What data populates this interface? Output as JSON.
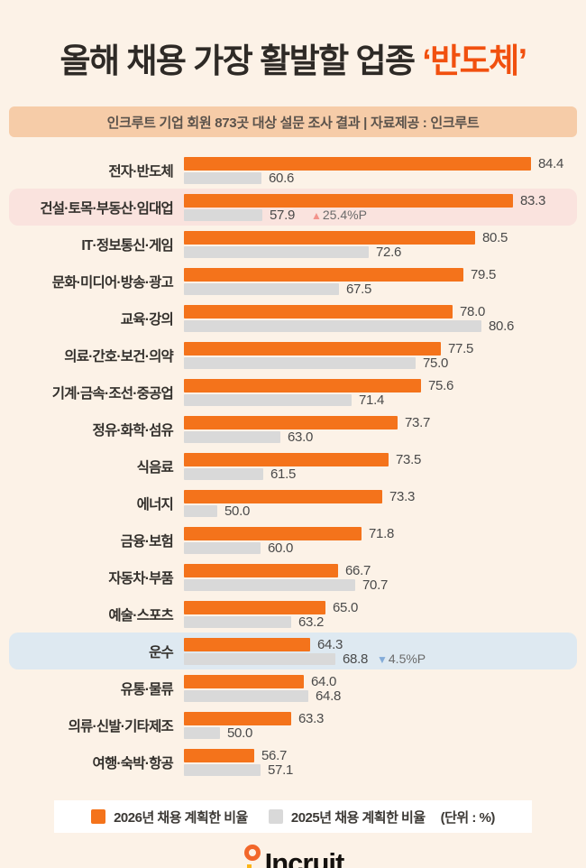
{
  "title": {
    "prefix": "올해 채용 가장 활발할 업종 ",
    "highlight": "‘반도체’"
  },
  "subtitle": "인크루트 기업 회원 873곳 대상 설문 조사 결과 | 자료제공 : 인크루트",
  "legend": {
    "label_2026": "2026년 채용 계획한 비율",
    "label_2025": "2025년 채용 계획한 비율",
    "unit": "(단위 : %)"
  },
  "logo": {
    "text": "Incruit"
  },
  "colors": {
    "background": "#FCF2E7",
    "bar_2026": "#F4731B",
    "bar_2025": "#D9D9D9",
    "title_accent": "#F1500F",
    "subtitle_bg": "#F6CCA8",
    "highlight_pink": "#FAE3DE",
    "highlight_blue": "#DEE9F1",
    "up_marker": "#F2938B",
    "down_marker": "#83ABD8"
  },
  "chart_data": {
    "type": "bar",
    "orientation": "horizontal",
    "title": "올해 채용 가장 활발할 업종 ‘반도체’",
    "unit": "%",
    "legend_position": "bottom",
    "categories": [
      "전자·반도체",
      "건설·토목·부동산·임대업",
      "IT·정보통신·게임",
      "문화·미디어·방송·광고",
      "교육·강의",
      "의료·간호·보건·의약",
      "기계·금속·조선·중공업",
      "정유·화학·섬유",
      "식음료",
      "에너지",
      "금융·보험",
      "자동차·부품",
      "예술·스포츠",
      "운수",
      "유통·물류",
      "의류·신발·기타제조",
      "여행·숙박·항공"
    ],
    "series": [
      {
        "name": "2026년 채용 계획한 비율",
        "values": [
          84.4,
          83.3,
          80.5,
          79.5,
          78.0,
          77.5,
          75.6,
          73.7,
          73.5,
          73.3,
          71.8,
          66.7,
          65.0,
          64.3,
          64.0,
          63.3,
          56.7
        ]
      },
      {
        "name": "2025년 채용 계획한 비율",
        "values": [
          60.6,
          57.9,
          72.6,
          67.5,
          80.6,
          75.0,
          71.4,
          63.0,
          61.5,
          50.0,
          60.0,
          70.7,
          63.2,
          68.8,
          64.8,
          50.0,
          57.1
        ]
      }
    ],
    "annotations": [
      {
        "category": "건설·토목·부동산·임대업",
        "marker": "▲",
        "text": "25.4%P",
        "direction": "up"
      },
      {
        "category": "운수",
        "marker": "▼",
        "text": "4.5%P",
        "direction": "down"
      }
    ],
    "rows": [
      {
        "label": "전자·반도체",
        "v2026": "84.4",
        "v2025": "60.6",
        "w2026": 385,
        "w2025": 86,
        "highlight": null,
        "annotation": null
      },
      {
        "label": "건설·토목·부동산·임대업",
        "v2026": "83.3",
        "v2025": "57.9",
        "w2026": 365,
        "w2025": 87,
        "highlight": "pink",
        "annotation": {
          "marker": "▲",
          "text": "25.4%P",
          "direction": "up"
        }
      },
      {
        "label": "IT·정보통신·게임",
        "v2026": "80.5",
        "v2025": "72.6",
        "w2026": 323,
        "w2025": 205,
        "highlight": null,
        "annotation": null
      },
      {
        "label": "문화·미디어·방송·광고",
        "v2026": "79.5",
        "v2025": "67.5",
        "w2026": 310,
        "w2025": 172,
        "highlight": null,
        "annotation": null
      },
      {
        "label": "교육·강의",
        "v2026": "78.0",
        "v2025": "80.6",
        "w2026": 298,
        "w2025": 330,
        "highlight": null,
        "annotation": null
      },
      {
        "label": "의료·간호·보건·의약",
        "v2026": "77.5",
        "v2025": "75.0",
        "w2026": 285,
        "w2025": 257,
        "highlight": null,
        "annotation": null
      },
      {
        "label": "기계·금속·조선·중공업",
        "v2026": "75.6",
        "v2025": "71.4",
        "w2026": 263,
        "w2025": 186,
        "highlight": null,
        "annotation": null
      },
      {
        "label": "정유·화학·섬유",
        "v2026": "73.7",
        "v2025": "63.0",
        "w2026": 237,
        "w2025": 107,
        "highlight": null,
        "annotation": null
      },
      {
        "label": "식음료",
        "v2026": "73.5",
        "v2025": "61.5",
        "w2026": 227,
        "w2025": 88,
        "highlight": null,
        "annotation": null
      },
      {
        "label": "에너지",
        "v2026": "73.3",
        "v2025": "50.0",
        "w2026": 220,
        "w2025": 37,
        "highlight": null,
        "annotation": null
      },
      {
        "label": "금융·보험",
        "v2026": "71.8",
        "v2025": "60.0",
        "w2026": 197,
        "w2025": 85,
        "highlight": null,
        "annotation": null
      },
      {
        "label": "자동차·부품",
        "v2026": "66.7",
        "v2025": "70.7",
        "w2026": 171,
        "w2025": 190,
        "highlight": null,
        "annotation": null
      },
      {
        "label": "예술·스포츠",
        "v2026": "65.0",
        "v2025": "63.2",
        "w2026": 157,
        "w2025": 119,
        "highlight": null,
        "annotation": null
      },
      {
        "label": "운수",
        "v2026": "64.3",
        "v2025": "68.8",
        "w2026": 140,
        "w2025": 168,
        "highlight": "blue",
        "annotation": {
          "marker": "▼",
          "text": "4.5%P",
          "direction": "down"
        }
      },
      {
        "label": "유통·물류",
        "v2026": "64.0",
        "v2025": "64.8",
        "w2026": 133,
        "w2025": 138,
        "highlight": null,
        "annotation": null
      },
      {
        "label": "의류·신발·기타제조",
        "v2026": "63.3",
        "v2025": "50.0",
        "w2026": 119,
        "w2025": 40,
        "highlight": null,
        "annotation": null
      },
      {
        "label": "여행·숙박·항공",
        "v2026": "56.7",
        "v2025": "57.1",
        "w2026": 78,
        "w2025": 85,
        "highlight": null,
        "annotation": null
      }
    ]
  }
}
